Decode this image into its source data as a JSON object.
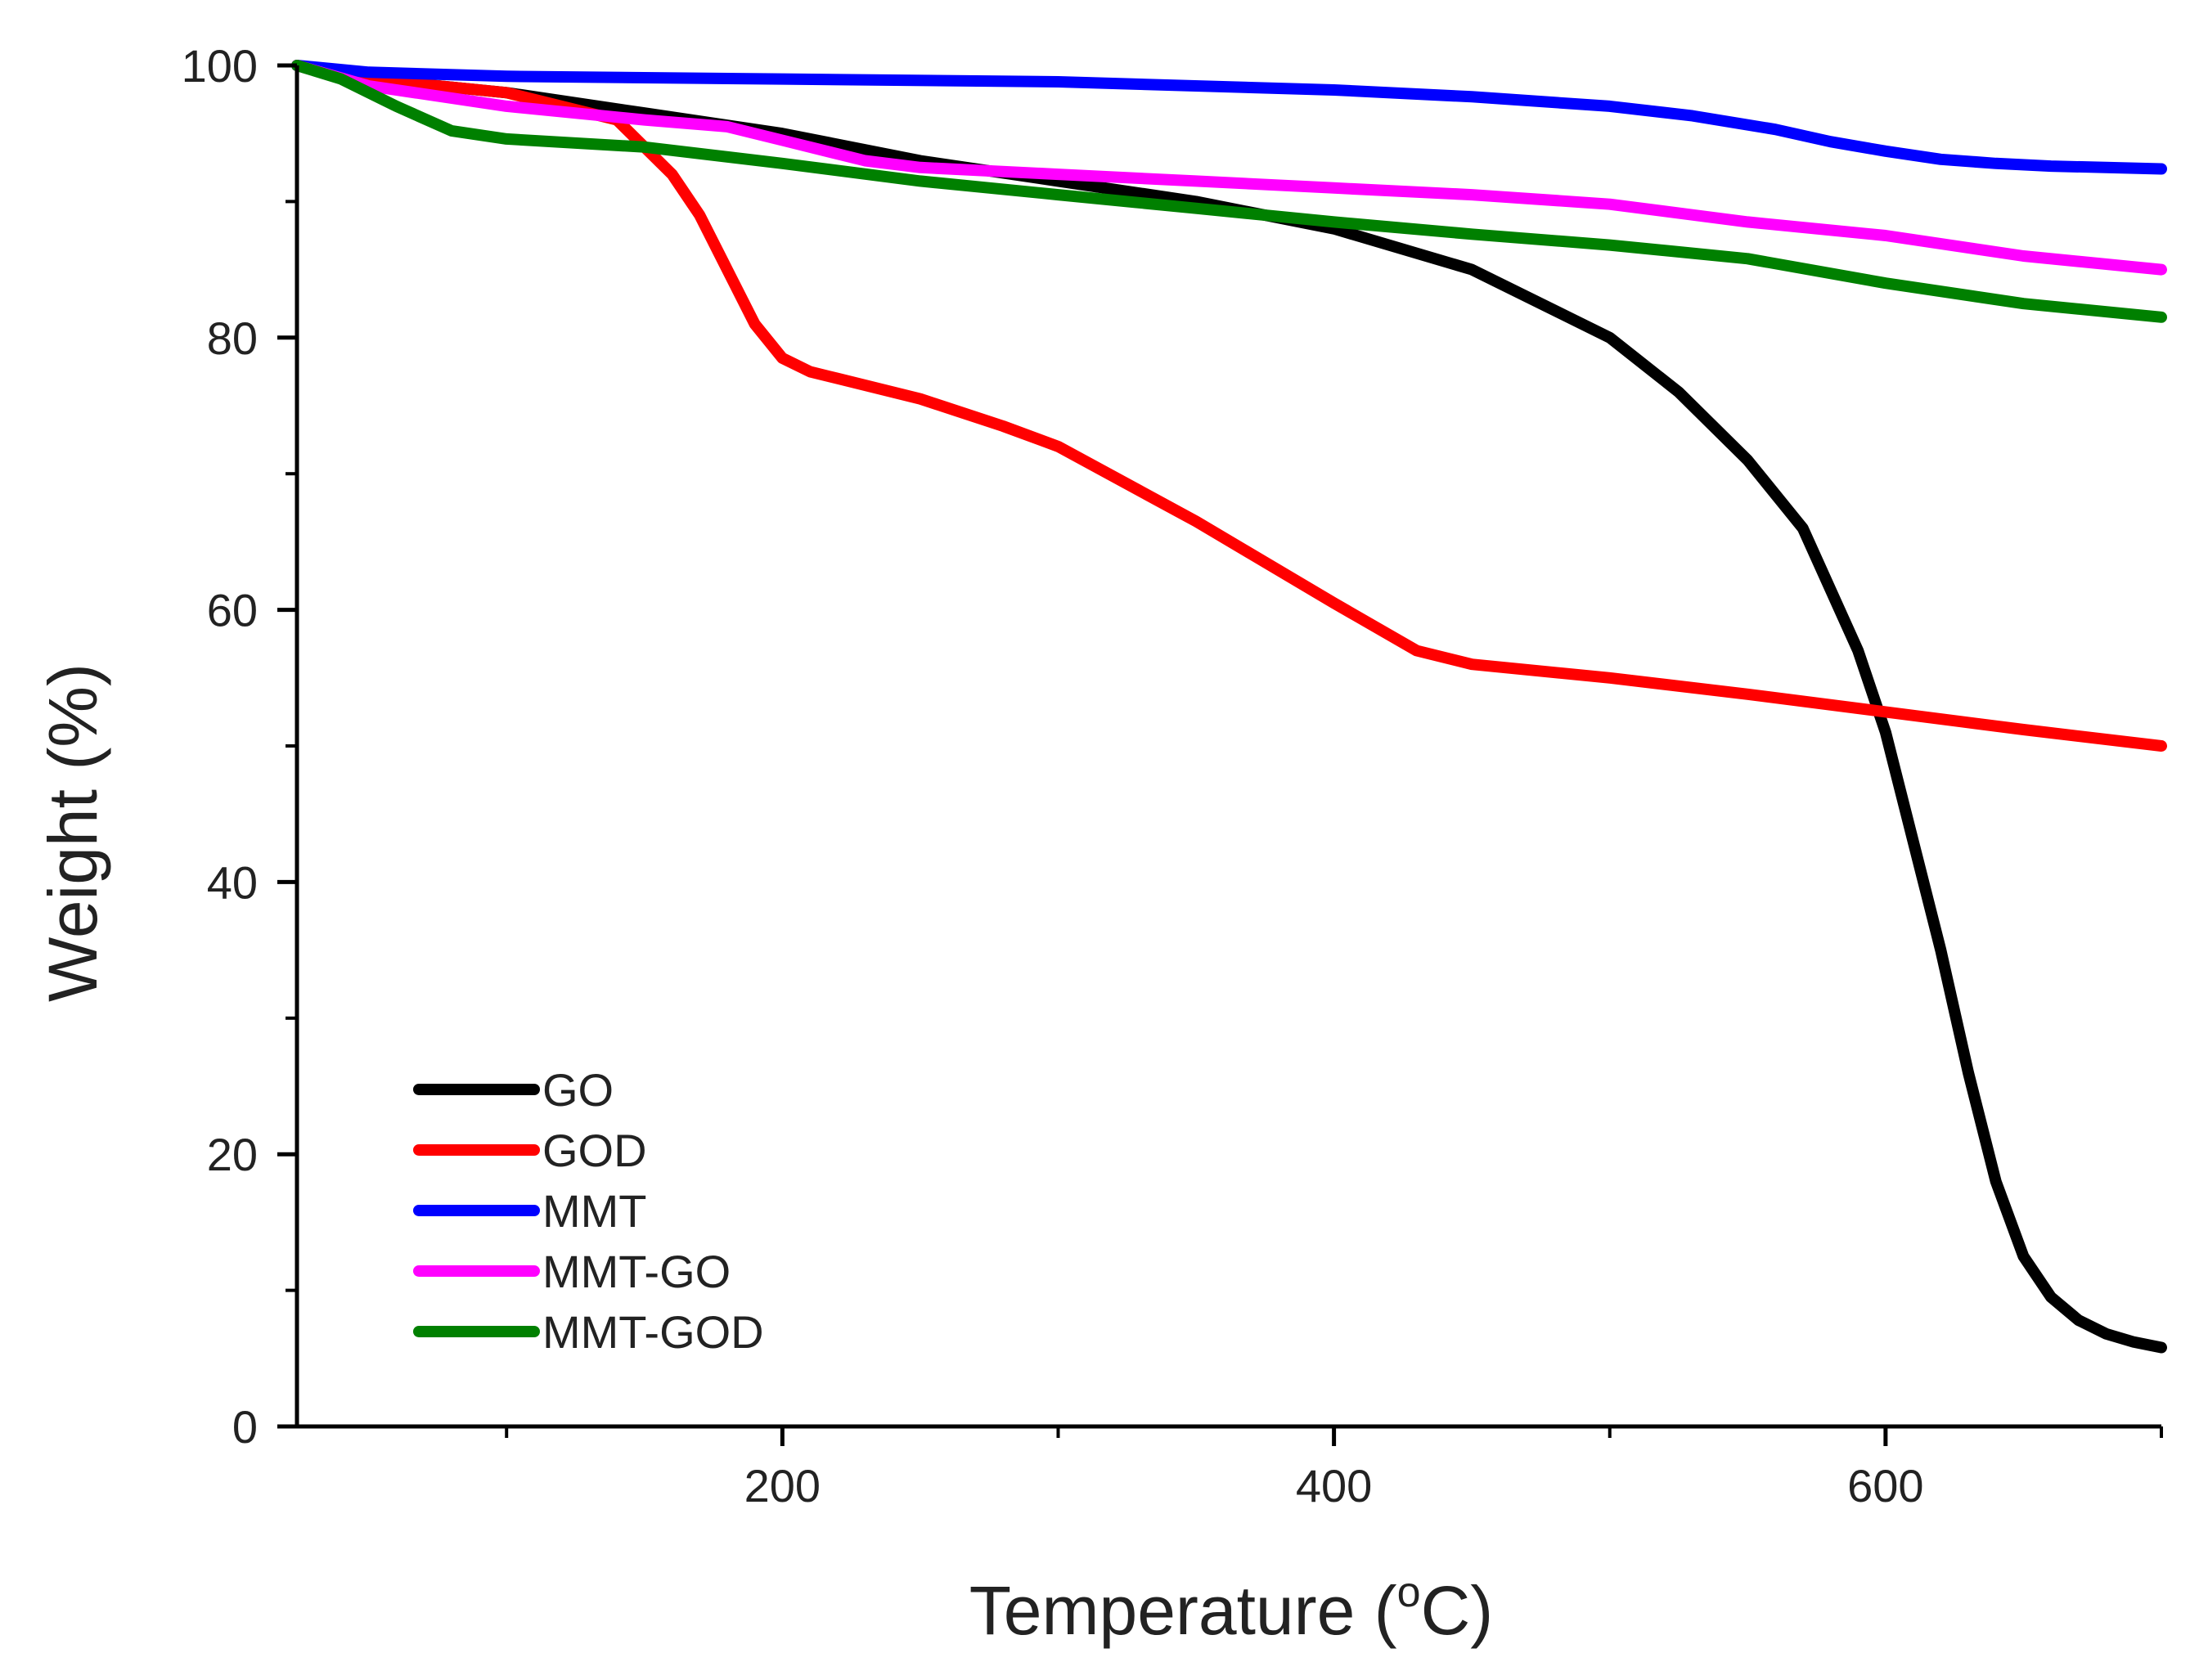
{
  "chart_data": {
    "type": "line",
    "title": "",
    "xlabel": "Temperature (",
    "xlabel_sup": "o",
    "xlabel_end": "C)",
    "ylabel": "Weight (%)",
    "xlim": [
      24,
      700
    ],
    "ylim": [
      0,
      100
    ],
    "xticks": [
      200,
      400,
      600
    ],
    "xtick_labels": [
      "200",
      "400",
      "600"
    ],
    "xminor": [
      100,
      300,
      500,
      700
    ],
    "yticks": [
      0,
      20,
      40,
      60,
      80,
      100
    ],
    "ytick_labels": [
      "0",
      "20",
      "40",
      "60",
      "80",
      "100"
    ],
    "yminor": [
      10,
      30,
      50,
      70,
      90
    ],
    "legend_position": "bottom-left",
    "series": [
      {
        "name": "GO",
        "color": "#000000",
        "x": [
          24,
          50,
          100,
          150,
          200,
          250,
          300,
          350,
          400,
          450,
          500,
          525,
          550,
          570,
          590,
          600,
          610,
          620,
          630,
          640,
          650,
          660,
          670,
          680,
          690,
          700
        ],
        "y": [
          100,
          99,
          98,
          96.5,
          95,
          93,
          91.5,
          90,
          88,
          85,
          80,
          76,
          71,
          66,
          57,
          51,
          43,
          35,
          26,
          18,
          12.5,
          9.5,
          7.8,
          6.8,
          6.2,
          5.8
        ]
      },
      {
        "name": "GOD",
        "color": "#ff0000",
        "x": [
          24,
          50,
          100,
          140,
          160,
          170,
          180,
          190,
          200,
          210,
          220,
          250,
          280,
          300,
          350,
          400,
          430,
          450,
          500,
          550,
          600,
          650,
          700
        ],
        "y": [
          100,
          99,
          98,
          96,
          92,
          89,
          85,
          81,
          78.5,
          77.5,
          77,
          75.5,
          73.5,
          72,
          66.5,
          60.5,
          57,
          56,
          55,
          53.8,
          52.5,
          51.2,
          50
        ]
      },
      {
        "name": "MMT",
        "color": "#0000ff",
        "x": [
          24,
          50,
          100,
          200,
          300,
          400,
          450,
          500,
          530,
          560,
          580,
          600,
          620,
          640,
          660,
          680,
          700
        ],
        "y": [
          100,
          99.5,
          99.2,
          99,
          98.8,
          98.2,
          97.7,
          97,
          96.3,
          95.3,
          94.4,
          93.7,
          93.1,
          92.8,
          92.6,
          92.5,
          92.4
        ]
      },
      {
        "name": "MMT-GO",
        "color": "#ff00ff",
        "x": [
          24,
          50,
          100,
          150,
          180,
          200,
          230,
          250,
          300,
          350,
          400,
          450,
          500,
          550,
          600,
          650,
          700
        ],
        "y": [
          100,
          98.5,
          97,
          96,
          95.5,
          94.5,
          93,
          92.5,
          92,
          91.5,
          91,
          90.5,
          89.8,
          88.5,
          87.5,
          86,
          85
        ]
      },
      {
        "name": "MMT-GOD",
        "color": "#008000",
        "x": [
          24,
          40,
          60,
          80,
          100,
          150,
          200,
          250,
          300,
          350,
          400,
          450,
          500,
          550,
          600,
          650,
          700
        ],
        "y": [
          100,
          99,
          97,
          95.2,
          94.6,
          94,
          92.8,
          91.5,
          90.5,
          89.5,
          88.5,
          87.6,
          86.8,
          85.8,
          84,
          82.5,
          81.5
        ]
      }
    ]
  }
}
